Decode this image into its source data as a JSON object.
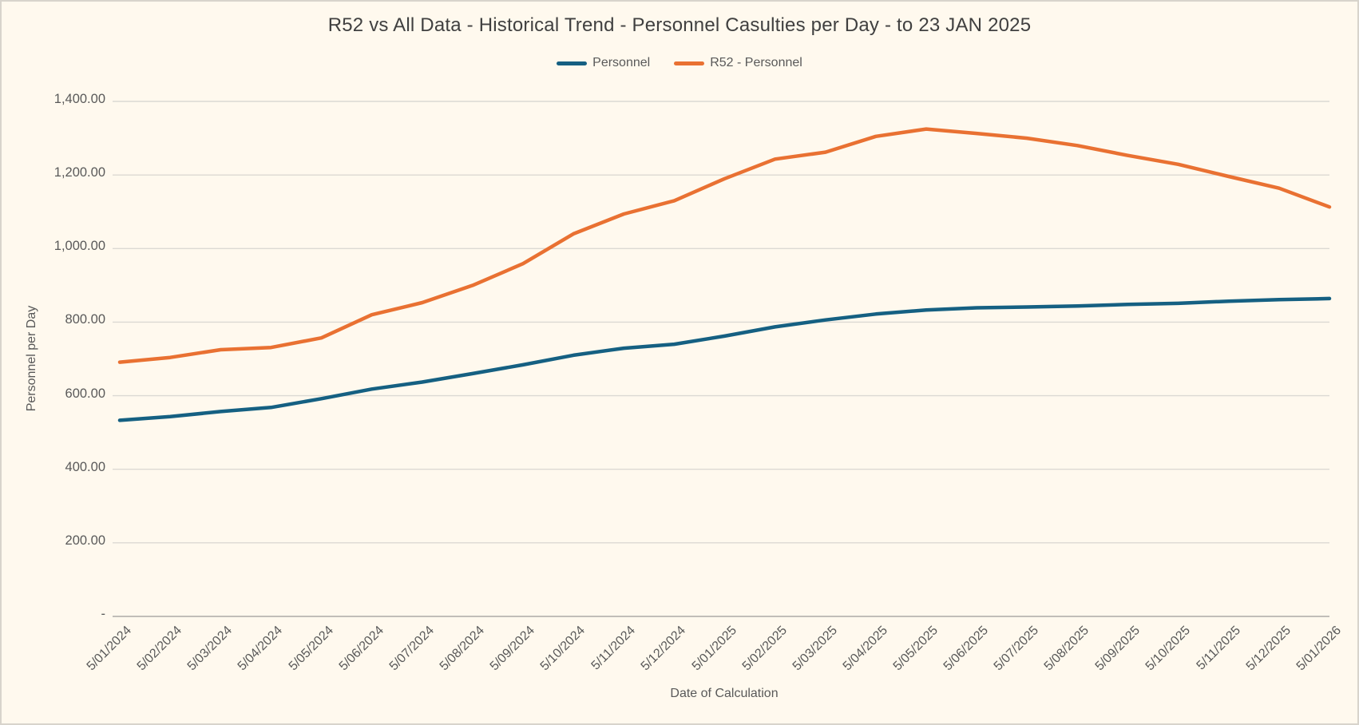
{
  "colors": {
    "background": "#fff9ee",
    "frame_border": "#d8d4cc",
    "gridline": "#dcd9d3",
    "axis_line": "#c1beb8",
    "title_text": "#404040",
    "label_text": "#595959",
    "series_personnel": "#156082",
    "series_r52": "#e97132"
  },
  "chart_data": {
    "type": "line",
    "title": "R52 vs All Data - Historical Trend - Personnel Casulties per Day - to 23 JAN 2025",
    "xlabel": "Date of Calculation",
    "ylabel": "Personnel per Day",
    "legend_position": "top",
    "grid": true,
    "ylim": [
      0,
      1400
    ],
    "ytick_step": 200,
    "ytick_labels": [
      "-",
      "200.00",
      "400.00",
      "600.00",
      "800.00",
      "1,000.00",
      "1,200.00",
      "1,400.00"
    ],
    "categories": [
      "5/01/2024",
      "5/02/2024",
      "5/03/2024",
      "5/04/2024",
      "5/05/2024",
      "5/06/2024",
      "5/07/2024",
      "5/08/2024",
      "5/09/2024",
      "5/10/2024",
      "5/11/2024",
      "5/12/2024",
      "5/01/2025",
      "5/02/2025",
      "5/03/2025",
      "5/04/2025",
      "5/05/2025",
      "5/06/2025",
      "5/07/2025",
      "5/08/2025",
      "5/09/2025",
      "5/10/2025",
      "5/11/2025",
      "5/12/2025",
      "5/01/2026"
    ],
    "series": [
      {
        "name": "Personnel",
        "color": "#156082",
        "values": [
          533,
          543,
          557,
          568,
          592,
          618,
          637,
          660,
          684,
          710,
          729,
          740,
          762,
          787,
          806,
          822,
          833,
          839,
          841,
          844,
          848,
          851,
          857,
          861,
          864
        ]
      },
      {
        "name": "R52 - Personnel",
        "color": "#e97132",
        "values": [
          691,
          704,
          725,
          731,
          757,
          820,
          853,
          900,
          959,
          1040,
          1094,
          1130,
          1190,
          1243,
          1262,
          1305,
          1325,
          1313,
          1300,
          1280,
          1253,
          1229,
          1196,
          1164,
          1113
        ]
      }
    ]
  }
}
